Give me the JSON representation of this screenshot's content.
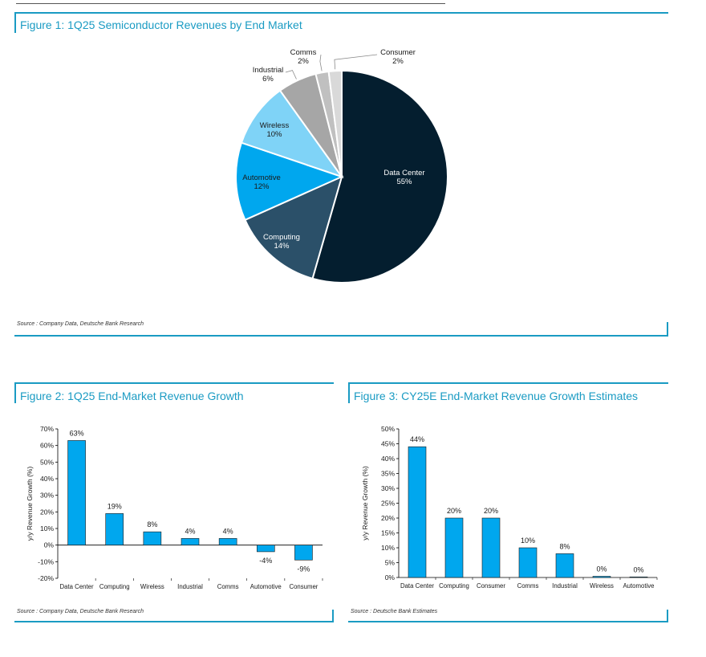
{
  "colors": {
    "accent": "#1a9bc3",
    "bar": "#00a7ee",
    "pie": {
      "Data Center": "#041e2f",
      "Computing": "#2b5069",
      "Automotive": "#00a7ee",
      "Wireless": "#7fd3f7",
      "Industrial": "#a6a6a6",
      "Comms": "#c0c0c0",
      "Consumer": "#d9d9d9"
    }
  },
  "chart_data": [
    {
      "type": "pie",
      "title": "Figure 1: 1Q25 Semiconductor Revenues by End Market",
      "categories": [
        "Data Center",
        "Computing",
        "Automotive",
        "Wireless",
        "Industrial",
        "Comms",
        "Consumer"
      ],
      "values": [
        55,
        14,
        12,
        10,
        6,
        2,
        2
      ],
      "labels": [
        "55%",
        "14%",
        "12%",
        "10%",
        "6%",
        "2%",
        "2%"
      ],
      "source": "Source : Company Data, Deutsche Bank Research"
    },
    {
      "type": "bar",
      "title": "Figure 2: 1Q25 End-Market Revenue Growth",
      "categories": [
        "Data Center",
        "Computing",
        "Wireless",
        "Industrial",
        "Comms",
        "Automotive",
        "Consumer"
      ],
      "values": [
        63,
        19,
        8,
        4,
        4,
        -4,
        -9
      ],
      "labels": [
        "63%",
        "19%",
        "8%",
        "4%",
        "4%",
        "-4%",
        "-9%"
      ],
      "ylabel": "y/y Revenue Growth (%)",
      "ylim": [
        -20,
        70
      ],
      "yticks": [
        70,
        60,
        50,
        40,
        30,
        20,
        10,
        0,
        -10,
        -20
      ],
      "yticklabels": [
        "70%",
        "60%",
        "50%",
        "40%",
        "30%",
        "20%",
        "10%",
        "0%",
        "-10%",
        "-20%"
      ],
      "source": "Source : Company Data, Deutsche Bank Research"
    },
    {
      "type": "bar",
      "title": "Figure 3: CY25E End-Market Revenue Growth Estimates",
      "categories": [
        "Data Center",
        "Computing",
        "Consumer",
        "Comms",
        "Industrial",
        "Wireless",
        "Automotive"
      ],
      "values": [
        44,
        20,
        20,
        10,
        8,
        0.4,
        0.2
      ],
      "labels": [
        "44%",
        "20%",
        "20%",
        "10%",
        "8%",
        "0%",
        "0%"
      ],
      "ylabel": "y/y Revenue Growth (%)",
      "ylim": [
        0,
        50
      ],
      "yticks": [
        50,
        45,
        40,
        35,
        30,
        25,
        20,
        15,
        10,
        5,
        0
      ],
      "yticklabels": [
        "50%",
        "45%",
        "40%",
        "35%",
        "30%",
        "25%",
        "20%",
        "15%",
        "10%",
        "5%",
        "0%"
      ],
      "source": "Source : Deutsche Bank Estimates"
    }
  ]
}
